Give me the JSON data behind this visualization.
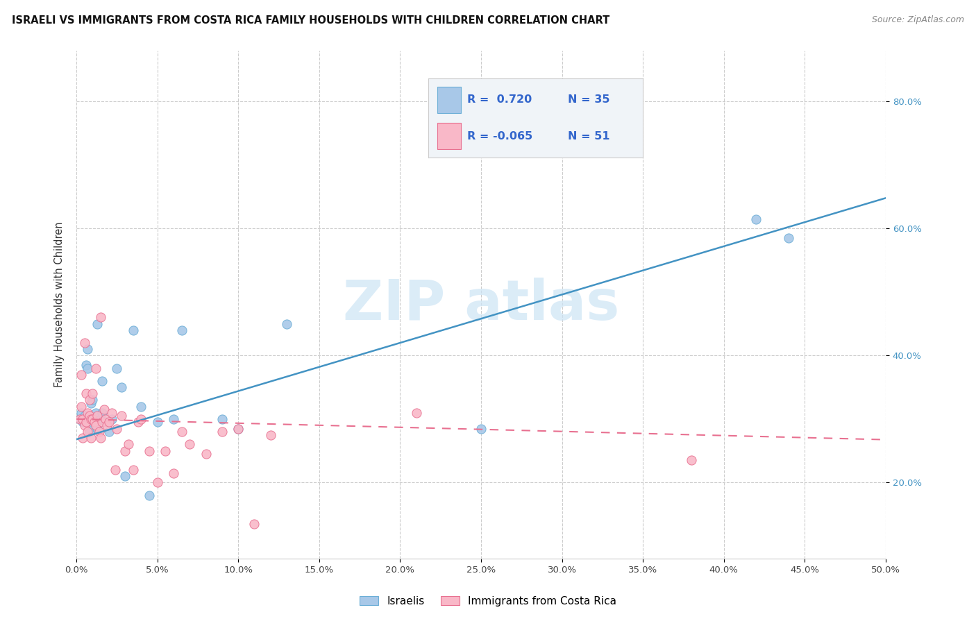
{
  "title": "ISRAELI VS IMMIGRANTS FROM COSTA RICA FAMILY HOUSEHOLDS WITH CHILDREN CORRELATION CHART",
  "source": "Source: ZipAtlas.com",
  "ylabel_label": "Family Households with Children",
  "xlim": [
    0.0,
    0.5
  ],
  "ylim": [
    0.08,
    0.88
  ],
  "yticks": [
    0.2,
    0.4,
    0.6,
    0.8
  ],
  "blue_R": 0.72,
  "blue_N": 35,
  "pink_R": -0.065,
  "pink_N": 51,
  "blue_dot_color": "#a8c8e8",
  "blue_edge_color": "#6baed6",
  "pink_dot_color": "#f9b8c8",
  "pink_edge_color": "#e87090",
  "blue_line_color": "#4393c3",
  "pink_line_color": "#e87090",
  "watermark_color": "#cce4f5",
  "legend_label_blue": "Israelis",
  "legend_label_pink": "Immigrants from Costa Rica",
  "legend_text_color": "#3366cc",
  "legend_bg_color": "#f0f4f8",
  "legend_border_color": "#cccccc",
  "blue_x": [
    0.002,
    0.003,
    0.004,
    0.005,
    0.006,
    0.007,
    0.007,
    0.008,
    0.009,
    0.01,
    0.01,
    0.012,
    0.013,
    0.013,
    0.015,
    0.016,
    0.016,
    0.018,
    0.02,
    0.022,
    0.025,
    0.028,
    0.03,
    0.035,
    0.04,
    0.045,
    0.05,
    0.06,
    0.065,
    0.09,
    0.1,
    0.13,
    0.25,
    0.42,
    0.44
  ],
  "blue_y": [
    0.3,
    0.31,
    0.295,
    0.305,
    0.385,
    0.38,
    0.41,
    0.28,
    0.325,
    0.33,
    0.295,
    0.31,
    0.285,
    0.45,
    0.3,
    0.31,
    0.36,
    0.295,
    0.28,
    0.3,
    0.38,
    0.35,
    0.21,
    0.44,
    0.32,
    0.18,
    0.295,
    0.3,
    0.44,
    0.3,
    0.285,
    0.45,
    0.285,
    0.615,
    0.585
  ],
  "pink_x": [
    0.002,
    0.003,
    0.003,
    0.004,
    0.004,
    0.005,
    0.005,
    0.006,
    0.006,
    0.007,
    0.007,
    0.008,
    0.008,
    0.009,
    0.009,
    0.01,
    0.01,
    0.011,
    0.012,
    0.012,
    0.013,
    0.014,
    0.015,
    0.015,
    0.016,
    0.017,
    0.018,
    0.019,
    0.02,
    0.022,
    0.024,
    0.025,
    0.028,
    0.03,
    0.032,
    0.035,
    0.038,
    0.04,
    0.045,
    0.05,
    0.055,
    0.06,
    0.065,
    0.07,
    0.08,
    0.09,
    0.1,
    0.11,
    0.12,
    0.21,
    0.38
  ],
  "pink_y": [
    0.3,
    0.32,
    0.37,
    0.27,
    0.3,
    0.29,
    0.42,
    0.295,
    0.34,
    0.28,
    0.31,
    0.305,
    0.33,
    0.27,
    0.3,
    0.3,
    0.34,
    0.295,
    0.38,
    0.29,
    0.305,
    0.28,
    0.27,
    0.46,
    0.295,
    0.315,
    0.3,
    0.29,
    0.295,
    0.31,
    0.22,
    0.285,
    0.305,
    0.25,
    0.26,
    0.22,
    0.295,
    0.3,
    0.25,
    0.2,
    0.25,
    0.215,
    0.28,
    0.26,
    0.245,
    0.28,
    0.285,
    0.135,
    0.275,
    0.31,
    0.235
  ]
}
